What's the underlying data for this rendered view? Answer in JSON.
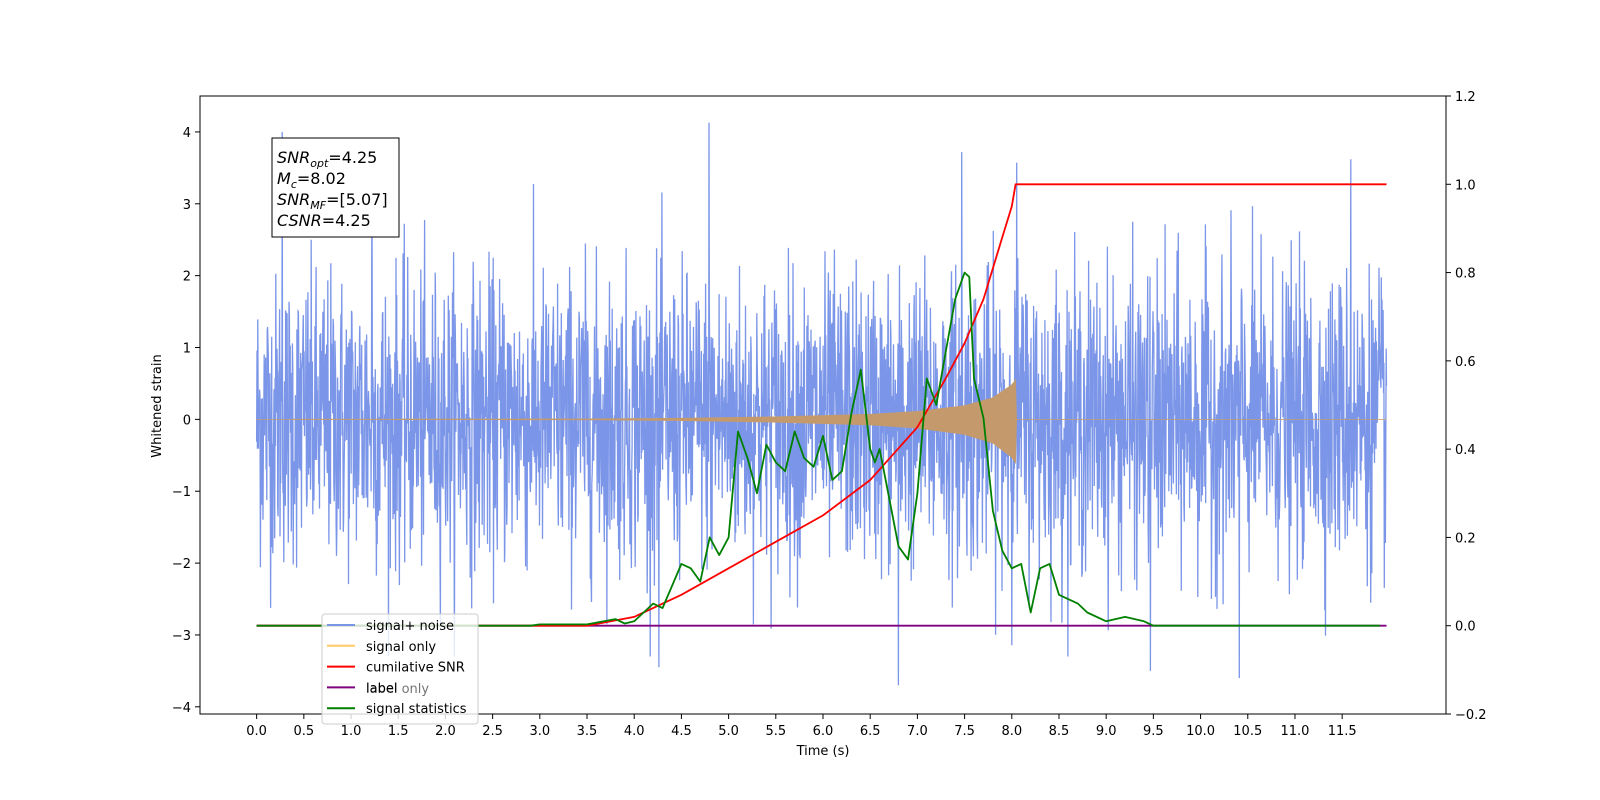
{
  "chart_data": {
    "type": "line",
    "xlabel": "Time (s)",
    "ylabel": "Whitened strain",
    "xlim": [
      -0.6,
      12.6
    ],
    "ylim_left": [
      -4.1,
      4.5
    ],
    "ylim_right": [
      -0.2,
      1.2
    ],
    "x_ticks": [
      0.0,
      0.5,
      1.0,
      1.5,
      2.0,
      2.5,
      3.0,
      3.5,
      4.0,
      4.5,
      5.0,
      5.5,
      6.0,
      6.5,
      7.0,
      7.5,
      8.0,
      8.5,
      9.0,
      9.5,
      10.0,
      10.5,
      11.0,
      11.5
    ],
    "x_tick_labels": [
      "0.0",
      "0.5",
      "1.0",
      "1.5",
      "2.0",
      "2.5",
      "3.0",
      "3.5",
      "4.0",
      "4.5",
      "5.0",
      "5.5",
      "6.0",
      "6.5",
      "7.0",
      "7.5",
      "8.0",
      "8.5",
      "9.0",
      "9.5",
      "10.0",
      "10.5",
      "11.0",
      "11.5"
    ],
    "y_left_ticks": [
      -4,
      -3,
      -2,
      -1,
      0,
      1,
      2,
      3,
      4
    ],
    "y_left_tick_labels": [
      "−4",
      "−3",
      "−2",
      "−1",
      "0",
      "1",
      "2",
      "3",
      "4"
    ],
    "y_right_ticks": [
      -0.2,
      0.0,
      0.2,
      0.4,
      0.6,
      0.8,
      1.0,
      1.2
    ],
    "y_right_tick_labels": [
      "−0.2",
      "0.0",
      "0.2",
      "0.4",
      "0.6",
      "0.8",
      "1.0",
      "1.2"
    ],
    "annotation": [
      {
        "sym": "SNR",
        "sub": "opt",
        "rest": "=4.25"
      },
      {
        "sym": "M",
        "sub": "c",
        "rest": "=8.02"
      },
      {
        "sym": "SNR",
        "sub": "MF",
        "rest": "=[5.07]"
      },
      {
        "sym": "CSNR",
        "sub": "",
        "rest": "=4.25"
      }
    ],
    "legend": {
      "placement": "lower-left",
      "entries": [
        {
          "label": "signal+ noise",
          "color": "#7b96e8"
        },
        {
          "label": "signal only",
          "color": "#ffc966"
        },
        {
          "label": "cumilative SNR",
          "color": "#ff0000"
        },
        {
          "label": "label",
          "color": "#800080"
        },
        {
          "label": "signal statistics",
          "color": "#008000"
        }
      ],
      "ghost_labels": [
        "label only"
      ]
    },
    "series": [
      {
        "name": "signal+ noise",
        "axis": "left",
        "color": "#7b96e8",
        "x_range": [
          0.0,
          11.97
        ],
        "sigma": 1.0,
        "peaks": [
          [
            0.27,
            4.0
          ],
          [
            4.79,
            4.13
          ],
          [
            7.47,
            3.72
          ],
          [
            11.59,
            3.62
          ],
          [
            8.05,
            3.57
          ],
          [
            1.22,
            3.53
          ],
          [
            6.8,
            -3.7
          ],
          [
            4.26,
            -3.45
          ],
          [
            10.41,
            -3.6
          ],
          [
            9.47,
            -3.5
          ]
        ]
      },
      {
        "name": "signal only",
        "axis": "left",
        "color": "#c49a6c",
        "envelope": [
          [
            0.0,
            0.0
          ],
          [
            3.5,
            0.005
          ],
          [
            4.5,
            0.015
          ],
          [
            5.5,
            0.035
          ],
          [
            6.5,
            0.07
          ],
          [
            7.0,
            0.11
          ],
          [
            7.5,
            0.19
          ],
          [
            7.8,
            0.3
          ],
          [
            8.0,
            0.48
          ],
          [
            8.04,
            0.55
          ],
          [
            8.05,
            0.0
          ],
          [
            11.97,
            0.0
          ]
        ]
      },
      {
        "name": "cumilative SNR",
        "axis": "right",
        "color": "#ff0000",
        "x": [
          0.0,
          3.5,
          4.0,
          4.5,
          5.0,
          5.5,
          6.0,
          6.5,
          7.0,
          7.3,
          7.5,
          7.7,
          7.9,
          8.0,
          8.04,
          8.05,
          11.97
        ],
        "y": [
          0.0,
          0.0,
          0.02,
          0.07,
          0.13,
          0.19,
          0.25,
          0.33,
          0.45,
          0.56,
          0.64,
          0.74,
          0.88,
          0.95,
          1.0,
          1.0,
          1.0
        ]
      },
      {
        "name": "label",
        "axis": "right",
        "color": "#800080",
        "x": [
          0.0,
          11.97
        ],
        "y": [
          0.0,
          0.0
        ]
      },
      {
        "name": "signal statistics",
        "axis": "right",
        "color": "#008000",
        "x": [
          0.0,
          2.9,
          3.0,
          3.5,
          3.8,
          3.9,
          4.0,
          4.2,
          4.3,
          4.4,
          4.5,
          4.6,
          4.7,
          4.8,
          4.9,
          5.0,
          5.1,
          5.2,
          5.3,
          5.4,
          5.5,
          5.6,
          5.7,
          5.8,
          5.9,
          6.0,
          6.1,
          6.2,
          6.3,
          6.4,
          6.5,
          6.55,
          6.6,
          6.7,
          6.8,
          6.9,
          7.0,
          7.1,
          7.2,
          7.3,
          7.4,
          7.5,
          7.55,
          7.6,
          7.7,
          7.8,
          7.9,
          8.0,
          8.1,
          8.2,
          8.3,
          8.4,
          8.5,
          8.6,
          8.7,
          8.8,
          9.0,
          9.2,
          9.4,
          9.5,
          9.6,
          10.0,
          11.9
        ],
        "y": [
          0.0,
          0.0,
          0.003,
          0.003,
          0.015,
          0.005,
          0.01,
          0.05,
          0.04,
          0.09,
          0.14,
          0.13,
          0.1,
          0.2,
          0.16,
          0.2,
          0.44,
          0.38,
          0.3,
          0.41,
          0.37,
          0.35,
          0.44,
          0.38,
          0.36,
          0.43,
          0.33,
          0.35,
          0.48,
          0.58,
          0.4,
          0.37,
          0.4,
          0.29,
          0.18,
          0.15,
          0.3,
          0.56,
          0.5,
          0.62,
          0.74,
          0.8,
          0.79,
          0.56,
          0.47,
          0.26,
          0.17,
          0.13,
          0.14,
          0.03,
          0.13,
          0.14,
          0.07,
          0.06,
          0.05,
          0.03,
          0.01,
          0.02,
          0.01,
          0.0,
          0.0,
          0.0,
          0.0
        ]
      }
    ]
  }
}
